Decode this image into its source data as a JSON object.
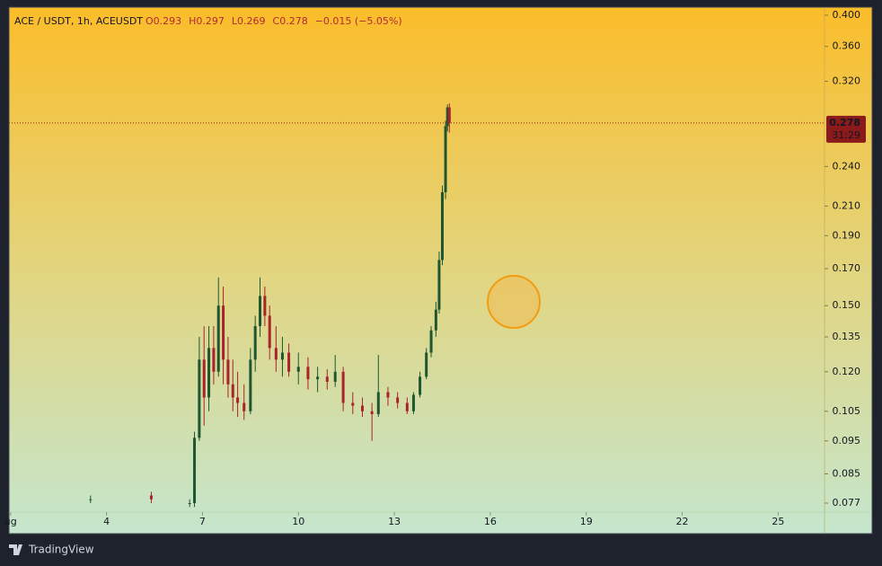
{
  "chart_data": {
    "type": "candlestick",
    "symbol": "ACE / USDT, 1h, ACEUSDT",
    "ohlc_text": [
      "O0.293",
      "H0.297",
      "L0.269",
      "C0.278",
      "−0.015 (−5.05%)"
    ],
    "last_price_label": "0.278",
    "countdown": "31:29",
    "brand": "TradingView",
    "log_scale": true,
    "up_color": "#1e5631",
    "down_color": "#a8232a",
    "price_line_color": "#8b1a1a",
    "x": [
      3.5,
      5.4,
      6.6,
      6.75,
      6.9,
      7.05,
      7.2,
      7.35,
      7.5,
      7.65,
      7.8,
      7.95,
      8.1,
      8.3,
      8.5,
      8.65,
      8.8,
      8.95,
      9.1,
      9.3,
      9.5,
      9.7,
      10,
      10.3,
      10.6,
      10.9,
      11.15,
      11.4,
      11.7,
      12,
      12.3,
      12.5,
      12.8,
      13.1,
      13.4,
      13.6,
      13.8,
      14.0,
      14.15,
      14.3,
      14.4,
      14.5,
      14.6,
      14.66,
      14.72
    ],
    "open": [
      0.078,
      0.079,
      0.077,
      0.077,
      0.096,
      0.125,
      0.11,
      0.13,
      0.12,
      0.15,
      0.125,
      0.115,
      0.11,
      0.108,
      0.105,
      0.125,
      0.14,
      0.155,
      0.145,
      0.13,
      0.125,
      0.128,
      0.12,
      0.122,
      0.117,
      0.118,
      0.116,
      0.12,
      0.108,
      0.107,
      0.105,
      0.104,
      0.112,
      0.11,
      0.108,
      0.105,
      0.111,
      0.118,
      0.128,
      0.138,
      0.148,
      0.175,
      0.22,
      0.275,
      0.293
    ],
    "high": [
      0.079,
      0.08,
      0.078,
      0.098,
      0.135,
      0.14,
      0.14,
      0.14,
      0.165,
      0.16,
      0.135,
      0.125,
      0.12,
      0.115,
      0.13,
      0.145,
      0.165,
      0.16,
      0.15,
      0.14,
      0.135,
      0.132,
      0.128,
      0.126,
      0.122,
      0.121,
      0.127,
      0.122,
      0.112,
      0.11,
      0.108,
      0.127,
      0.114,
      0.112,
      0.11,
      0.112,
      0.12,
      0.13,
      0.14,
      0.152,
      0.18,
      0.225,
      0.28,
      0.296,
      0.297
    ],
    "low": [
      0.077,
      0.077,
      0.076,
      0.076,
      0.095,
      0.1,
      0.105,
      0.115,
      0.118,
      0.115,
      0.11,
      0.105,
      0.103,
      0.102,
      0.104,
      0.12,
      0.135,
      0.14,
      0.125,
      0.12,
      0.118,
      0.118,
      0.115,
      0.113,
      0.112,
      0.113,
      0.114,
      0.105,
      0.104,
      0.103,
      0.095,
      0.103,
      0.107,
      0.106,
      0.104,
      0.104,
      0.11,
      0.117,
      0.126,
      0.135,
      0.146,
      0.172,
      0.215,
      0.27,
      0.269
    ],
    "close": [
      0.078,
      0.078,
      0.077,
      0.096,
      0.125,
      0.11,
      0.13,
      0.12,
      0.15,
      0.125,
      0.115,
      0.11,
      0.108,
      0.105,
      0.125,
      0.14,
      0.155,
      0.145,
      0.13,
      0.125,
      0.128,
      0.12,
      0.122,
      0.117,
      0.118,
      0.116,
      0.12,
      0.108,
      0.107,
      0.105,
      0.104,
      0.112,
      0.11,
      0.108,
      0.105,
      0.111,
      0.118,
      0.128,
      0.138,
      0.148,
      0.175,
      0.22,
      0.275,
      0.293,
      0.278
    ],
    "xlim": [
      0.95,
      26.45
    ],
    "xticks": [
      {
        "value": 1,
        "label": "ug"
      },
      4,
      7,
      10,
      13,
      16,
      19,
      22,
      25
    ],
    "ylim": [
      0.0747,
      0.411
    ],
    "yticks": [
      0.077,
      0.085,
      0.095,
      0.105,
      {
        "value": 0.12,
        "label": "0.120"
      },
      0.135,
      {
        "value": 0.15,
        "label": "0.150"
      },
      {
        "value": 0.17,
        "label": "0.170"
      },
      {
        "value": 0.19,
        "label": "0.190"
      },
      {
        "value": 0.21,
        "label": "0.210"
      },
      {
        "value": 0.24,
        "label": "0.240"
      },
      {
        "value": 0.32,
        "label": "0.320"
      },
      {
        "value": 0.36,
        "label": "0.360"
      },
      {
        "value": 0.4,
        "label": "0.400"
      }
    ]
  }
}
